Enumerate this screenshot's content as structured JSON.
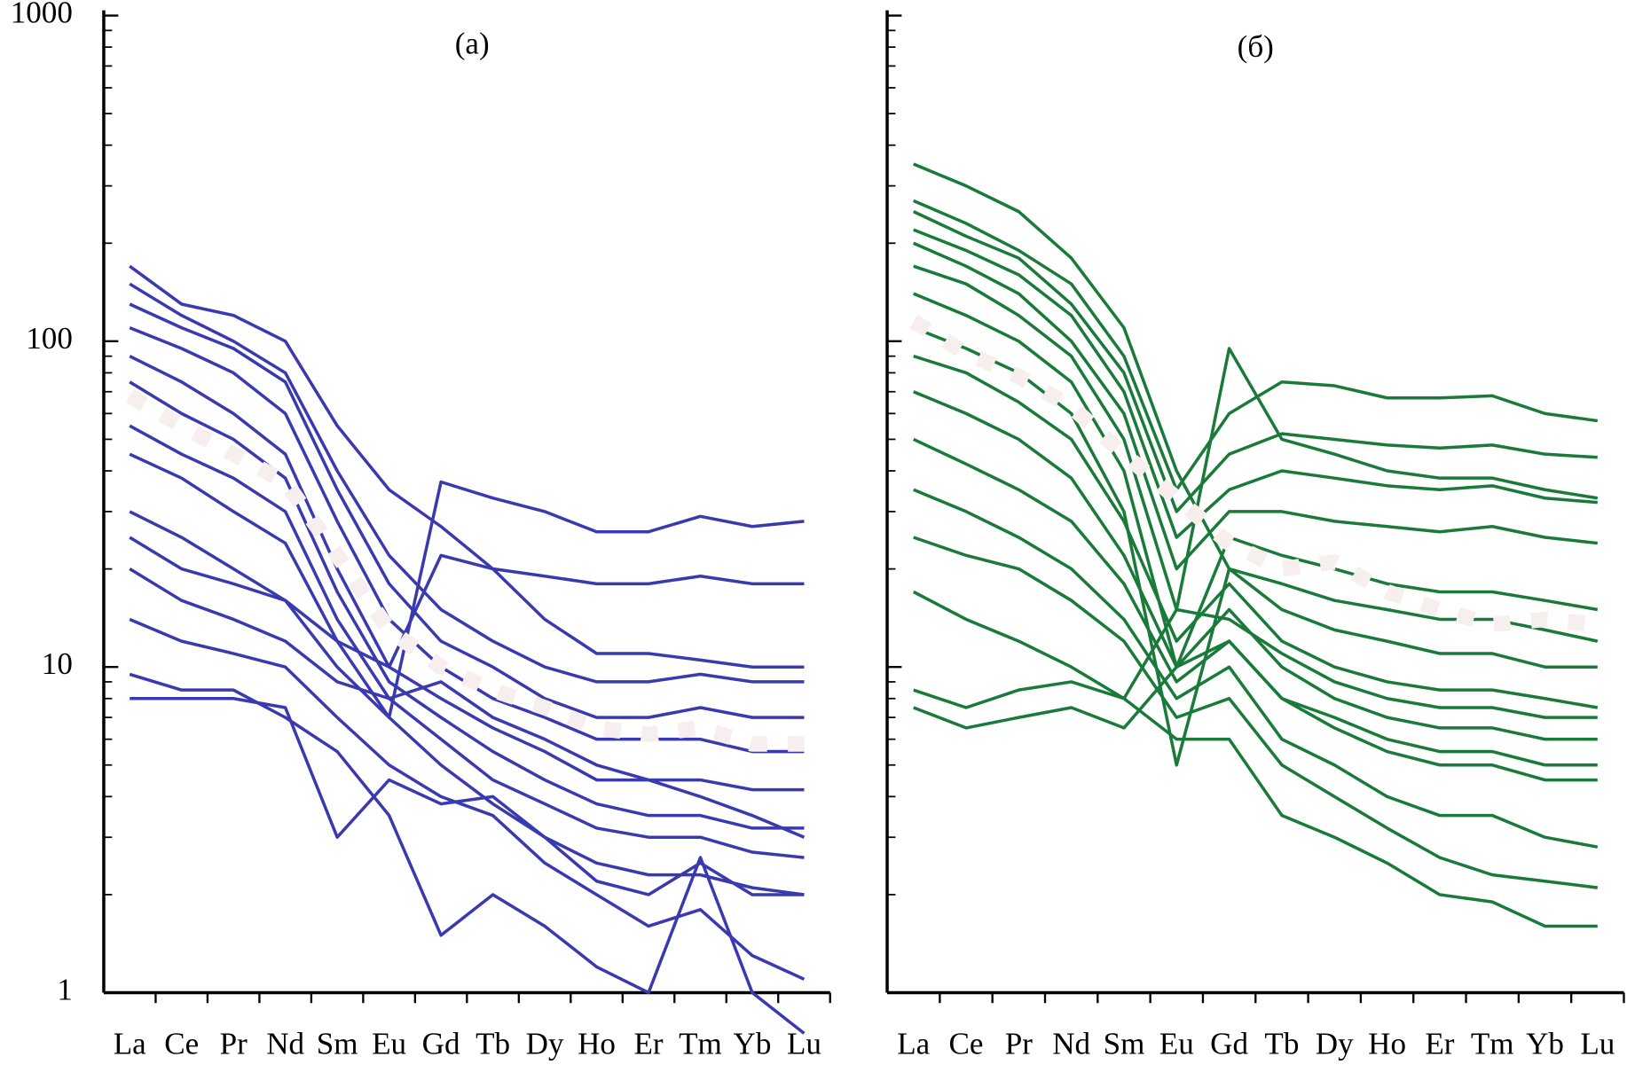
{
  "chart_data": [
    {
      "type": "line",
      "title": "(а)",
      "log_scale": true,
      "show_ytick_labels": true,
      "categories": [
        "La",
        "Ce",
        "Pr",
        "Nd",
        "Sm",
        "Eu",
        "Gd",
        "Tb",
        "Dy",
        "Ho",
        "Er",
        "Tm",
        "Yb",
        "Lu"
      ],
      "ylim": [
        1,
        1000
      ],
      "yticks": [
        1,
        10,
        100,
        1000
      ],
      "yminorticks": [
        2,
        3,
        4,
        5,
        6,
        7,
        8,
        9,
        20,
        30,
        40,
        50,
        60,
        70,
        80,
        90,
        200,
        300,
        400,
        500,
        600,
        700,
        800,
        900
      ],
      "series": [
        {
          "color": "#3a3ab0",
          "values": [
            170,
            130,
            120,
            100,
            55,
            35,
            27,
            20,
            14,
            11,
            11,
            10.5,
            10,
            10
          ]
        },
        {
          "color": "#3a3ab0",
          "values": [
            150,
            120,
            100,
            80,
            40,
            22,
            15,
            12,
            10,
            9,
            9,
            9.5,
            9,
            9
          ]
        },
        {
          "color": "#3a3ab0",
          "values": [
            130,
            110,
            95,
            75,
            35,
            18,
            12,
            10,
            8,
            7,
            7,
            7.5,
            7,
            7
          ]
        },
        {
          "color": "#3a3ab0",
          "values": [
            110,
            95,
            80,
            60,
            28,
            14,
            10,
            8,
            7,
            6,
            6,
            6,
            5.5,
            5.5
          ]
        },
        {
          "color": "#3a3ab0",
          "values": [
            90,
            75,
            60,
            45,
            20,
            10,
            8,
            6.5,
            5.5,
            4.5,
            4.5,
            4.5,
            4.2,
            4.2
          ]
        },
        {
          "color": "#3a3ab0",
          "values": [
            75,
            60,
            50,
            38,
            17,
            9,
            7,
            5.5,
            4.5,
            3.8,
            3.5,
            3.5,
            3.2,
            3.2
          ]
        },
        {
          "color": "#3a3ab0",
          "values": [
            55,
            45,
            38,
            30,
            14,
            8,
            6,
            4.5,
            3.8,
            3.2,
            3,
            3,
            2.7,
            2.6
          ]
        },
        {
          "color": "#3a3ab0",
          "values": [
            45,
            38,
            30,
            24,
            12,
            7,
            5,
            3.8,
            3,
            2.5,
            2.3,
            2.3,
            2.1,
            2
          ]
        },
        {
          "color": "#3a3ab0",
          "values": [
            30,
            25,
            20,
            16,
            10,
            7,
            37,
            33,
            30,
            26,
            26,
            29,
            27,
            28
          ]
        },
        {
          "color": "#3a3ab0",
          "values": [
            25,
            20,
            18,
            16,
            12,
            10,
            22,
            20,
            19,
            18,
            18,
            19,
            18,
            18
          ]
        },
        {
          "color": "#3a3ab0",
          "values": [
            20,
            16,
            14,
            12,
            9,
            8,
            9,
            7,
            6,
            5,
            4.5,
            4,
            3.5,
            3
          ]
        },
        {
          "color": "#3a3ab0",
          "values": [
            14,
            12,
            11,
            10,
            7,
            5,
            4,
            3.5,
            2.5,
            2,
            1.6,
            1.8,
            1.3,
            1.1
          ]
        },
        {
          "color": "#3a3ab0",
          "values": [
            9.5,
            8.5,
            8.5,
            7,
            5.5,
            3.5,
            1.5,
            2,
            1.6,
            1.2,
            1,
            2.6,
            1,
            0.75
          ]
        },
        {
          "color": "#3a3ab0",
          "values": [
            8,
            8,
            8,
            7.5,
            3,
            4.5,
            3.8,
            4,
            3,
            2.2,
            2,
            2.5,
            2,
            2
          ]
        },
        {
          "color": "#f7eeee",
          "style": "dotted",
          "values": [
            68,
            55,
            45,
            37,
            22,
            13,
            10,
            8.5,
            7.5,
            6.5,
            6.2,
            6.5,
            5.8,
            5.8
          ]
        }
      ]
    },
    {
      "type": "line",
      "title": "(б)",
      "log_scale": true,
      "show_ytick_labels": false,
      "categories": [
        "La",
        "Ce",
        "Pr",
        "Nd",
        "Sm",
        "Eu",
        "Gd",
        "Tb",
        "Dy",
        "Ho",
        "Er",
        "Tm",
        "Yb",
        "Lu"
      ],
      "ylim": [
        1,
        1000
      ],
      "yticks": [
        1,
        10,
        100,
        1000
      ],
      "yminorticks": [
        2,
        3,
        4,
        5,
        6,
        7,
        8,
        9,
        20,
        30,
        40,
        50,
        60,
        70,
        80,
        90,
        200,
        300,
        400,
        500,
        600,
        700,
        800,
        900
      ],
      "series": [
        {
          "color": "#1a7a3a",
          "values": [
            350,
            300,
            250,
            180,
            110,
            40,
            20,
            18,
            16,
            15,
            14,
            14,
            13,
            12
          ]
        },
        {
          "color": "#1a7a3a",
          "values": [
            270,
            230,
            190,
            150,
            90,
            35,
            60,
            75,
            73,
            67,
            67,
            68,
            60,
            57
          ]
        },
        {
          "color": "#1a7a3a",
          "values": [
            250,
            210,
            180,
            130,
            80,
            30,
            45,
            52,
            50,
            48,
            47,
            48,
            45,
            44
          ]
        },
        {
          "color": "#1a7a3a",
          "values": [
            220,
            190,
            160,
            120,
            70,
            25,
            35,
            40,
            38,
            36,
            35,
            36,
            33,
            32
          ]
        },
        {
          "color": "#1a7a3a",
          "values": [
            200,
            170,
            140,
            100,
            60,
            20,
            30,
            30,
            28,
            27,
            26,
            27,
            25,
            24
          ]
        },
        {
          "color": "#1a7a3a",
          "values": [
            170,
            150,
            120,
            90,
            50,
            15,
            95,
            50,
            45,
            40,
            38,
            38,
            35,
            33
          ]
        },
        {
          "color": "#1a7a3a",
          "values": [
            140,
            120,
            100,
            75,
            40,
            10,
            25,
            22,
            20,
            18,
            17,
            17,
            16,
            15
          ]
        },
        {
          "color": "#1a7a3a",
          "values": [
            110,
            95,
            80,
            60,
            30,
            5,
            20,
            15,
            13,
            12,
            11,
            11,
            10,
            10
          ]
        },
        {
          "color": "#1a7a3a",
          "values": [
            90,
            80,
            65,
            50,
            28,
            12,
            18,
            12,
            10,
            9,
            8.5,
            8.5,
            8,
            7.5
          ]
        },
        {
          "color": "#1a7a3a",
          "values": [
            70,
            60,
            50,
            38,
            22,
            10,
            15,
            10,
            8,
            7,
            6.5,
            6.5,
            6,
            6
          ]
        },
        {
          "color": "#1a7a3a",
          "values": [
            50,
            42,
            35,
            28,
            18,
            9,
            12,
            8,
            6.5,
            5.5,
            5,
            5,
            4.5,
            4.5
          ]
        },
        {
          "color": "#1a7a3a",
          "values": [
            35,
            30,
            25,
            20,
            14,
            8,
            10,
            6,
            5,
            4,
            3.5,
            3.5,
            3,
            2.8
          ]
        },
        {
          "color": "#1a7a3a",
          "values": [
            25,
            22,
            20,
            16,
            12,
            7,
            8,
            5,
            4,
            3.2,
            2.6,
            2.3,
            2.2,
            2.1
          ]
        },
        {
          "color": "#1a7a3a",
          "values": [
            17,
            14,
            12,
            10,
            8,
            6,
            6,
            3.5,
            3,
            2.5,
            2,
            1.9,
            1.6,
            1.6
          ]
        },
        {
          "color": "#1a7a3a",
          "values": [
            7.5,
            6.5,
            7,
            7.5,
            6.5,
            10,
            12,
            8,
            7,
            6,
            5.5,
            5.5,
            5,
            5
          ]
        },
        {
          "color": "#1a7a3a",
          "values": [
            8.5,
            7.5,
            8.5,
            9,
            8,
            15,
            14,
            11,
            9,
            8,
            7.5,
            7.5,
            7,
            7
          ]
        },
        {
          "color": "#f7eeee",
          "style": "dotted",
          "values": [
            115,
            92,
            78,
            63,
            45,
            33,
            24,
            20,
            21,
            17,
            15,
            13.5,
            14,
            13.5
          ]
        }
      ]
    }
  ]
}
